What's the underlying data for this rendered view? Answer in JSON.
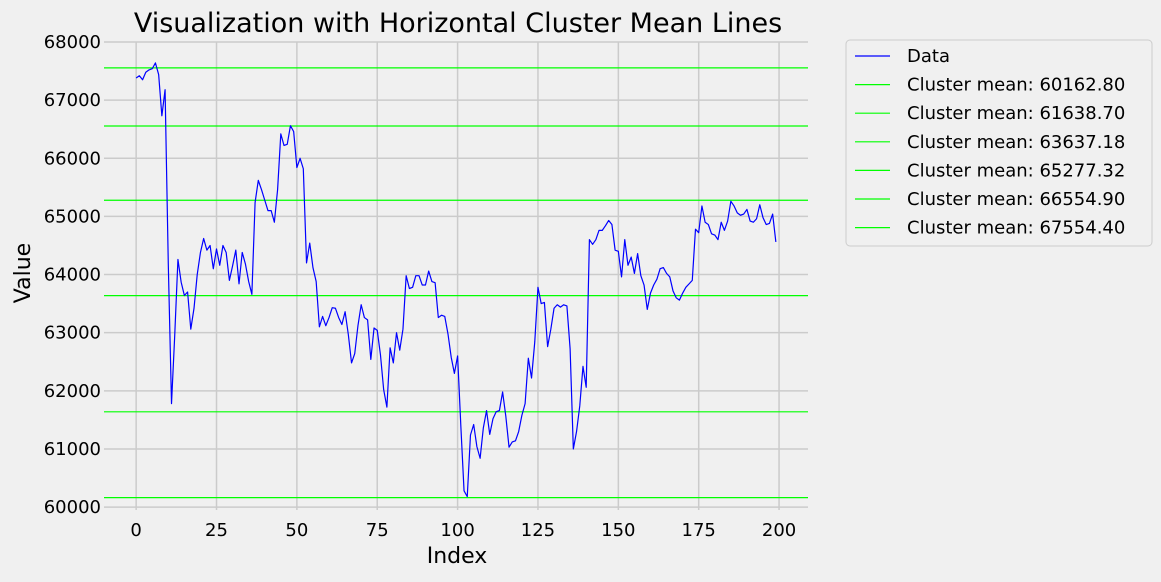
{
  "chart_data": {
    "type": "line",
    "title": "Visualization with Horizontal Cluster Mean Lines",
    "xlabel": "Index",
    "ylabel": "Value",
    "xlim": [
      -10,
      209
    ],
    "ylim": [
      59950,
      68000
    ],
    "xticks": [
      0,
      25,
      50,
      75,
      100,
      125,
      150,
      175,
      200
    ],
    "yticks": [
      60000,
      61000,
      62000,
      63000,
      64000,
      65000,
      66000,
      67000,
      68000
    ],
    "grid": true,
    "legend_position": "outside-right-top",
    "colors": {
      "background": "#f0f0f0",
      "grid": "#cbcbcb",
      "data_line": "#0000ff",
      "cluster_line": "#00ff00"
    },
    "series": [
      {
        "name": "Data",
        "x_start": 0,
        "x_step": 1,
        "values": [
          67380,
          67420,
          67350,
          67480,
          67520,
          67540,
          67640,
          67440,
          66730,
          67180,
          64180,
          61780,
          62950,
          64260,
          63870,
          63640,
          63700,
          63060,
          63420,
          64000,
          64380,
          64620,
          64420,
          64500,
          64100,
          64440,
          64160,
          64500,
          64380,
          63900,
          64150,
          64420,
          63840,
          64380,
          64180,
          63880,
          63660,
          65240,
          65620,
          65460,
          65280,
          65100,
          65100,
          64900,
          65460,
          66420,
          66220,
          66240,
          66560,
          66460,
          65840,
          66000,
          65820,
          64200,
          64540,
          64120,
          63880,
          63100,
          63280,
          63120,
          63260,
          63430,
          63420,
          63260,
          63140,
          63360,
          62970,
          62480,
          62640,
          63120,
          63480,
          63260,
          63220,
          62540,
          63080,
          63040,
          62620,
          62020,
          61720,
          62740,
          62480,
          63000,
          62700,
          63060,
          63980,
          63760,
          63780,
          63980,
          63980,
          63820,
          63820,
          64060,
          63880,
          63860,
          63260,
          63300,
          63280,
          62980,
          62580,
          62300,
          62600,
          61400,
          60280,
          60180,
          61240,
          61420,
          61040,
          60840,
          61360,
          61660,
          61250,
          61520,
          61640,
          61660,
          61980,
          61560,
          61030,
          61120,
          61140,
          61300,
          61580,
          61780,
          62560,
          62220,
          62840,
          63780,
          63500,
          63520,
          62760,
          63060,
          63420,
          63480,
          63440,
          63480,
          63460,
          62720,
          61000,
          61300,
          61740,
          62420,
          62060,
          64600,
          64520,
          64600,
          64760,
          64760,
          64840,
          64930,
          64860,
          64420,
          64400,
          63960,
          64600,
          64160,
          64300,
          64020,
          64360,
          63980,
          63820,
          63400,
          63680,
          63820,
          63920,
          64100,
          64120,
          64020,
          63960,
          63720,
          63600,
          63560,
          63680,
          63780,
          63840,
          63900,
          64780,
          64720,
          65180,
          64900,
          64860,
          64700,
          64680,
          64600,
          64900,
          64760,
          64920,
          65260,
          65180,
          65060,
          65020,
          65040,
          65120,
          64920,
          64900,
          64960,
          65200,
          64980,
          64860,
          64880,
          65040,
          64560
        ]
      }
    ],
    "cluster_means": [
      {
        "label": "Cluster mean: 60162.80",
        "value": 60162.8
      },
      {
        "label": "Cluster mean: 61638.70",
        "value": 61638.7
      },
      {
        "label": "Cluster mean: 63637.18",
        "value": 63637.18
      },
      {
        "label": "Cluster mean: 65277.32",
        "value": 65277.32
      },
      {
        "label": "Cluster mean: 66554.90",
        "value": 66554.9
      },
      {
        "label": "Cluster mean: 67554.40",
        "value": 67554.4
      }
    ]
  }
}
